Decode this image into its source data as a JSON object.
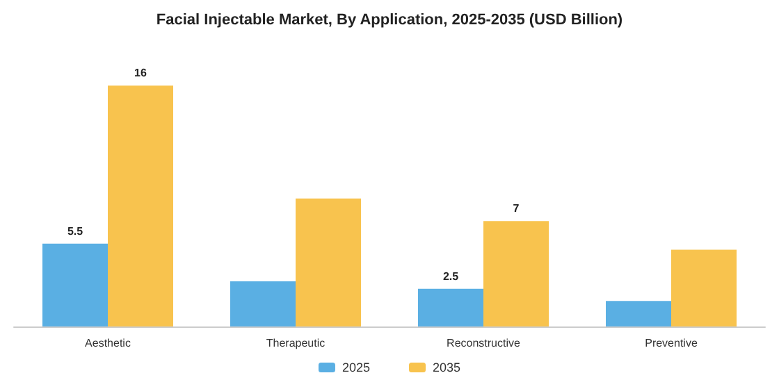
{
  "chart_data": {
    "type": "bar",
    "title": "Facial Injectable Market, By Application, 2025-2035 (USD Billion)",
    "categories": [
      "Aesthetic",
      "Therapeutic",
      "Reconstructive",
      "Preventive"
    ],
    "series": [
      {
        "name": "2025",
        "color": "#5aafe3",
        "values": [
          5.5,
          3.0,
          2.5,
          1.7
        ],
        "value_labels": [
          "5.5",
          null,
          "2.5",
          null
        ]
      },
      {
        "name": "2035",
        "color": "#f8c34e",
        "values": [
          16,
          8.5,
          7,
          5.1
        ],
        "value_labels": [
          "16",
          null,
          "7",
          null
        ]
      }
    ],
    "legend": "bottom",
    "grid": false
  }
}
